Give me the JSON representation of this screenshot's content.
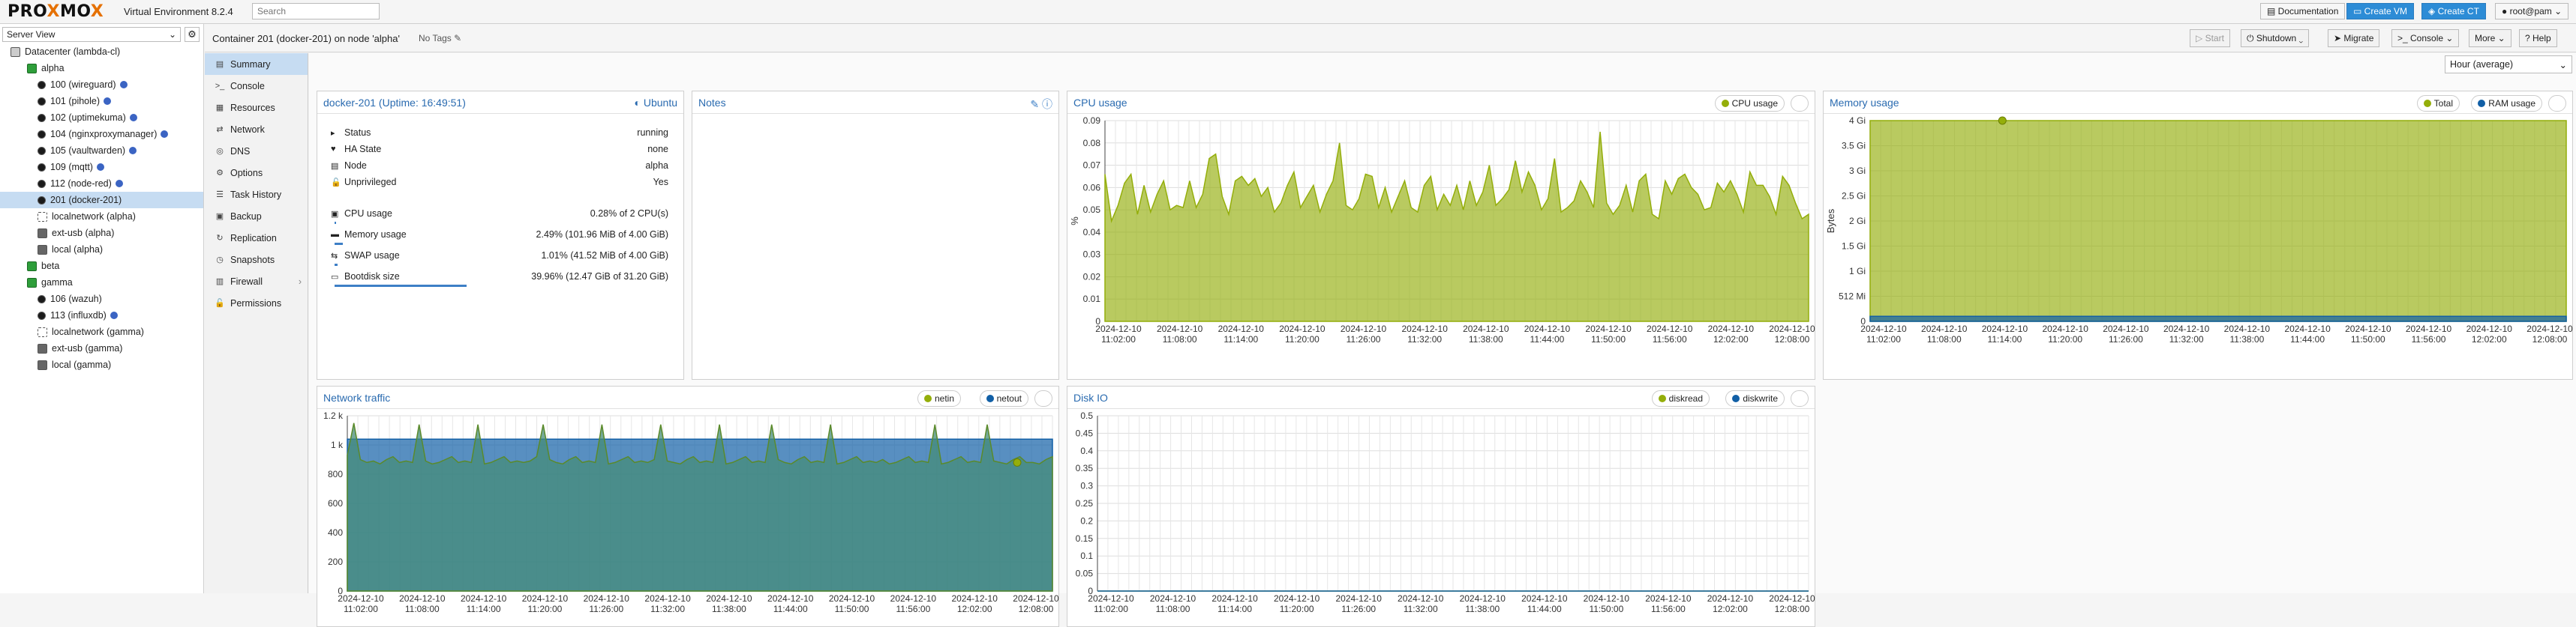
{
  "topbar": {
    "logo_a": "PRO",
    "logo_x1": "X",
    "logo_b": "MO",
    "logo_x2": "X",
    "version": "Virtual Environment 8.2.4",
    "search_placeholder": "Search",
    "documentation": "Documentation",
    "create_vm": "Create VM",
    "create_ct": "Create CT",
    "user": "root@pam",
    "help": "Help"
  },
  "tree": {
    "view": "Server View",
    "items": [
      {
        "label": "Datacenter (lambda-cl)",
        "icon": "datacenter-icon"
      },
      {
        "label": "alpha",
        "icon": "node-icon"
      },
      {
        "label": "100 (wireguard)",
        "icon": "container-icon",
        "tag": true
      },
      {
        "label": "101 (pihole)",
        "icon": "container-icon",
        "tag": true
      },
      {
        "label": "102 (uptimekuma)",
        "icon": "container-icon",
        "tag": true
      },
      {
        "label": "104 (nginxproxymanager)",
        "icon": "container-icon",
        "tag": true
      },
      {
        "label": "105 (vaultwarden)",
        "icon": "container-icon",
        "tag": true
      },
      {
        "label": "109 (mqtt)",
        "icon": "container-icon",
        "tag": true
      },
      {
        "label": "112 (node-red)",
        "icon": "container-icon",
        "tag": true
      },
      {
        "label": "201 (docker-201)",
        "icon": "container-icon",
        "tag": false,
        "selected": true
      },
      {
        "label": "localnetwork (alpha)",
        "icon": "network-icon"
      },
      {
        "label": "ext-usb (alpha)",
        "icon": "storage-icon"
      },
      {
        "label": "local (alpha)",
        "icon": "storage-icon"
      },
      {
        "label": "beta",
        "icon": "node-icon"
      },
      {
        "label": "gamma",
        "icon": "node-icon"
      },
      {
        "label": "106 (wazuh)",
        "icon": "container-icon"
      },
      {
        "label": "113 (influxdb)",
        "icon": "container-icon",
        "tag": true
      },
      {
        "label": "localnetwork (gamma)",
        "icon": "network-icon"
      },
      {
        "label": "ext-usb (gamma)",
        "icon": "storage-icon"
      },
      {
        "label": "local (gamma)",
        "icon": "storage-icon"
      }
    ]
  },
  "header": {
    "title": "Container 201 (docker-201) on node 'alpha'",
    "tags": "No Tags",
    "start": "Start",
    "shutdown": "Shutdown",
    "migrate": "Migrate",
    "console": "Console",
    "more": "More",
    "help": "Help"
  },
  "menu": [
    {
      "label": "Summary",
      "icon": "summary-icon",
      "selected": true
    },
    {
      "label": "Console",
      "icon": "console-icon"
    },
    {
      "label": "Resources",
      "icon": "resources-icon"
    },
    {
      "label": "Network",
      "icon": "network-icon"
    },
    {
      "label": "DNS",
      "icon": "dns-icon"
    },
    {
      "label": "Options",
      "icon": "options-icon"
    },
    {
      "label": "Task History",
      "icon": "task-history-icon"
    },
    {
      "label": "Backup",
      "icon": "backup-icon"
    },
    {
      "label": "Replication",
      "icon": "replication-icon"
    },
    {
      "label": "Snapshots",
      "icon": "snapshots-icon"
    },
    {
      "label": "Firewall",
      "icon": "firewall-icon"
    },
    {
      "label": "Permissions",
      "icon": "permissions-icon"
    }
  ],
  "timeframe": "Hour (average)",
  "status": {
    "title": "docker-201 (Uptime: 16:49:51)",
    "os": "Ubuntu",
    "rows": [
      {
        "k": "Status",
        "v": "running"
      },
      {
        "k": "HA State",
        "v": "none"
      },
      {
        "k": "Node",
        "v": "alpha"
      },
      {
        "k": "Unprivileged",
        "v": "Yes"
      }
    ],
    "usage": [
      {
        "k": "CPU usage",
        "v": "0.28% of 2 CPU(s)",
        "pct": 0.28
      },
      {
        "k": "Memory usage",
        "v": "2.49% (101.96 MiB of 4.00 GiB)",
        "pct": 2.49
      },
      {
        "k": "SWAP usage",
        "v": "1.01% (41.52 MiB of 4.00 GiB)",
        "pct": 1.01
      },
      {
        "k": "Bootdisk size",
        "v": "39.96% (12.47 GiB of 31.20 GiB)",
        "pct": 39.96
      }
    ]
  },
  "notes": {
    "title": "Notes"
  },
  "xticks": [
    "11:02:00",
    "11:08:00",
    "11:14:00",
    "11:20:00",
    "11:26:00",
    "11:32:00",
    "11:38:00",
    "11:44:00",
    "11:50:00",
    "11:56:00",
    "12:02:00",
    "12:08:00"
  ],
  "xdate": "2024-12-10",
  "chart_data": [
    {
      "type": "area",
      "title": "CPU usage",
      "ylabel": "%",
      "legend": [
        "CPU usage"
      ],
      "color": "#94ae0a",
      "ylim": [
        0,
        0.09
      ],
      "yticks": [
        "0",
        "0.01",
        "0.02",
        "0.03",
        "0.04",
        "0.05",
        "0.06",
        "0.07",
        "0.08",
        "0.09"
      ],
      "series": [
        {
          "name": "CPU usage",
          "values": [
            0.066,
            0.045,
            0.052,
            0.062,
            0.066,
            0.048,
            0.061,
            0.049,
            0.057,
            0.063,
            0.05,
            0.052,
            0.051,
            0.063,
            0.051,
            0.057,
            0.073,
            0.075,
            0.056,
            0.048,
            0.063,
            0.065,
            0.061,
            0.064,
            0.056,
            0.06,
            0.049,
            0.053,
            0.061,
            0.067,
            0.051,
            0.056,
            0.061,
            0.049,
            0.057,
            0.063,
            0.08,
            0.052,
            0.05,
            0.055,
            0.066,
            0.065,
            0.051,
            0.06,
            0.049,
            0.056,
            0.063,
            0.051,
            0.049,
            0.061,
            0.065,
            0.05,
            0.057,
            0.052,
            0.061,
            0.05,
            0.063,
            0.052,
            0.058,
            0.07,
            0.052,
            0.055,
            0.059,
            0.072,
            0.058,
            0.067,
            0.061,
            0.05,
            0.055,
            0.073,
            0.049,
            0.051,
            0.054,
            0.063,
            0.058,
            0.051,
            0.085,
            0.053,
            0.048,
            0.052,
            0.061,
            0.049,
            0.063,
            0.066,
            0.048,
            0.046,
            0.063,
            0.057,
            0.064,
            0.066,
            0.06,
            0.057,
            0.05,
            0.051,
            0.062,
            0.058,
            0.063,
            0.057,
            0.049,
            0.067,
            0.061,
            0.061,
            0.056,
            0.048,
            0.065,
            0.061,
            0.053,
            0.046,
            0.048
          ]
        }
      ]
    },
    {
      "type": "area",
      "title": "Memory usage",
      "ylabel": "Bytes",
      "legend": [
        "Total",
        "RAM usage"
      ],
      "ylim": [
        0,
        4
      ],
      "yticks": [
        "0",
        "512 Mi",
        "1 Gi",
        "1.5 Gi",
        "2 Gi",
        "2.5 Gi",
        "3 Gi",
        "3.5 Gi",
        "4 Gi"
      ],
      "series": [
        {
          "name": "Total",
          "unit": "Gi",
          "values": [
            4,
            4
          ]
        },
        {
          "name": "RAM usage",
          "unit": "Gi",
          "values": [
            0.1,
            0.1
          ]
        }
      ]
    },
    {
      "type": "area",
      "title": "Network traffic",
      "legend": [
        "netin",
        "netout"
      ],
      "ylim": [
        0,
        1200
      ],
      "yticks": [
        "0",
        "200",
        "400",
        "600",
        "800",
        "1 k",
        "1.2 k"
      ],
      "series": [
        {
          "name": "netin",
          "values": [
            930,
            1150,
            900,
            880,
            890,
            870,
            900,
            920,
            880,
            890,
            880,
            1140,
            890,
            870,
            880,
            900,
            920,
            880,
            890,
            880,
            1140,
            870,
            880,
            900,
            920,
            880,
            890,
            880,
            890,
            920,
            1140,
            900,
            880,
            870,
            900,
            920,
            880,
            890,
            880,
            1140,
            870,
            880,
            900,
            920,
            880,
            890,
            880,
            900,
            1140,
            890,
            880,
            870,
            900,
            920,
            880,
            890,
            880,
            1140,
            870,
            880,
            900,
            920,
            880,
            890,
            880,
            1140,
            900,
            880,
            870,
            900,
            920,
            880,
            890,
            880,
            1140,
            870,
            880,
            900,
            920,
            880,
            890,
            880,
            900,
            870,
            880,
            900,
            920,
            880,
            890,
            880,
            1140,
            870,
            880,
            900,
            920,
            880,
            890,
            880,
            1140,
            890,
            880,
            870,
            900,
            920,
            880,
            880,
            870,
            900,
            920
          ]
        },
        {
          "name": "netout",
          "values": [
            1040,
            1040,
            1040,
            1040,
            1040,
            1040,
            1040,
            1040,
            1040,
            1040,
            1040,
            1040,
            1040,
            1040,
            1040,
            1040,
            1040,
            1040,
            1040,
            1040
          ]
        }
      ]
    },
    {
      "type": "area",
      "title": "Disk IO",
      "legend": [
        "diskread",
        "diskwrite"
      ],
      "ylim": [
        0,
        0.5
      ],
      "yticks": [
        "0",
        "0.05",
        "0.1",
        "0.15",
        "0.2",
        "0.25",
        "0.3",
        "0.35",
        "0.4",
        "0.45",
        "0.5"
      ],
      "series": [
        {
          "name": "diskread",
          "values": [
            0,
            0
          ]
        },
        {
          "name": "diskwrite",
          "values": [
            0,
            0
          ]
        }
      ]
    }
  ]
}
